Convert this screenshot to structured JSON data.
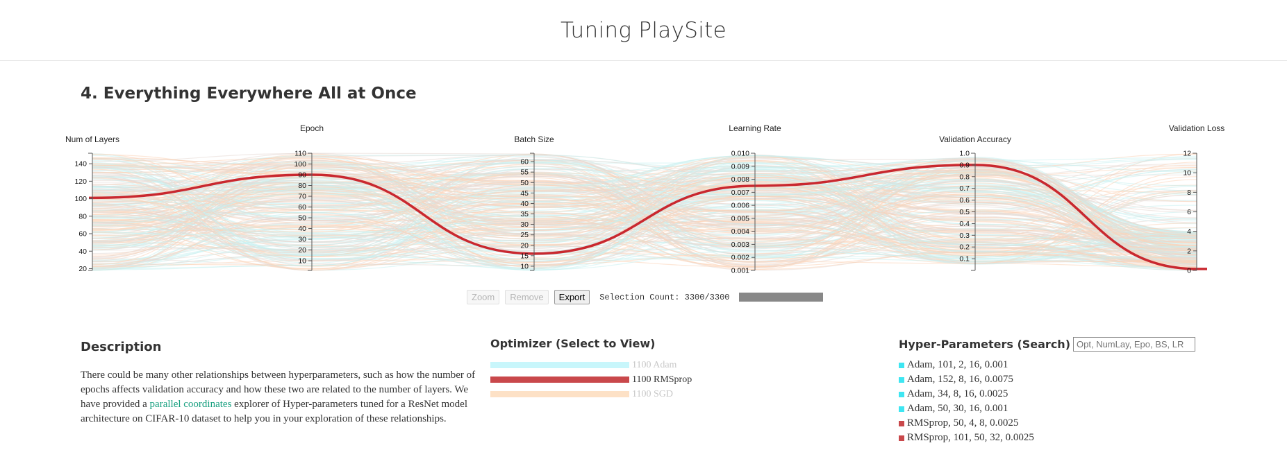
{
  "site": {
    "title": "Tuning PlaySite"
  },
  "section": {
    "title": "4. Everything Everywhere All at Once"
  },
  "controls": {
    "zoom": "Zoom",
    "remove": "Remove",
    "export": "Export",
    "selection_count": "Selection Count: 3300/3300"
  },
  "description": {
    "title": "Description",
    "text_before": "There could be many other relationships between hyperparameters, such as how the number of epochs affects validation accuracy and how these two are related to the number of layers. We have provided a ",
    "link_text": "parallel coordinates",
    "text_after": " explorer of Hyper-parameters tuned for a ResNet model architecture on CIFAR-10 dataset to help you in your exploration of these relationships."
  },
  "optimizer": {
    "title": "Optimizer (Select to View)",
    "items": [
      {
        "label": "1100 Adam",
        "color": "#c8f6fb",
        "text_color": "#c8c8c8",
        "selected": false
      },
      {
        "label": "1100 RMSprop",
        "color": "#c9484b",
        "text_color": "#333333",
        "selected": true
      },
      {
        "label": "1100 SGD",
        "color": "#fde1c6",
        "text_color": "#c8c8c8",
        "selected": false
      }
    ]
  },
  "hyperparams": {
    "title": "Hyper-Parameters (Search)",
    "placeholder": "Opt, NumLay, Epo, BS, LR",
    "items": [
      {
        "text": "Adam, 101, 2, 16, 0.001",
        "color": "#3ee6f2"
      },
      {
        "text": "Adam, 152, 8, 16, 0.0075",
        "color": "#3ee6f2"
      },
      {
        "text": "Adam, 34, 8, 16, 0.0025",
        "color": "#3ee6f2"
      },
      {
        "text": "Adam, 50, 30, 16, 0.001",
        "color": "#3ee6f2"
      },
      {
        "text": "RMSprop, 50, 4, 8, 0.0025",
        "color": "#c9484b"
      },
      {
        "text": "RMSprop, 101, 50, 32, 0.0025",
        "color": "#c9484b"
      }
    ]
  },
  "colors": {
    "adam": "#c8f1f1",
    "rmsprop": "#e6d8d4",
    "sgd": "#fbd4b8",
    "highlight": "#c9282f"
  },
  "chart_data": {
    "type": "parallel-coordinates",
    "axes": [
      {
        "label": "Num of Layers",
        "ticks": [
          20,
          40,
          60,
          80,
          100,
          120,
          140
        ],
        "range": [
          18,
          152
        ]
      },
      {
        "label": "Epoch",
        "ticks": [
          10,
          20,
          30,
          40,
          50,
          60,
          70,
          80,
          90,
          100,
          110
        ],
        "range": [
          1,
          110
        ]
      },
      {
        "label": "Batch Size",
        "ticks": [
          10,
          15,
          20,
          25,
          30,
          35,
          40,
          45,
          50,
          55,
          60
        ],
        "range": [
          8,
          64
        ]
      },
      {
        "label": "Learning Rate",
        "ticks": [
          "0.001",
          "0.002",
          "0.003",
          "0.004",
          "0.005",
          "0.006",
          "0.007",
          "0.008",
          "0.009",
          "0.010"
        ],
        "range": [
          0.001,
          0.01
        ]
      },
      {
        "label": "Validation Accuracy",
        "ticks": [
          "0.1",
          "0.2",
          "0.3",
          "0.4",
          "0.5",
          "0.6",
          "0.7",
          "0.8",
          "0.9",
          "1.0"
        ],
        "range": [
          0.0,
          1.0
        ]
      },
      {
        "label": "Validation Loss",
        "ticks": [
          0,
          2,
          4,
          6,
          8,
          10,
          12
        ],
        "range": [
          0,
          12
        ]
      }
    ],
    "highlighted": [
      101,
      90,
      16,
      0.0075,
      0.9,
      0.15
    ],
    "series": [
      {
        "name": "Adam",
        "count": 1100
      },
      {
        "name": "RMSprop",
        "count": 1100
      },
      {
        "name": "SGD",
        "count": 1100
      }
    ]
  }
}
